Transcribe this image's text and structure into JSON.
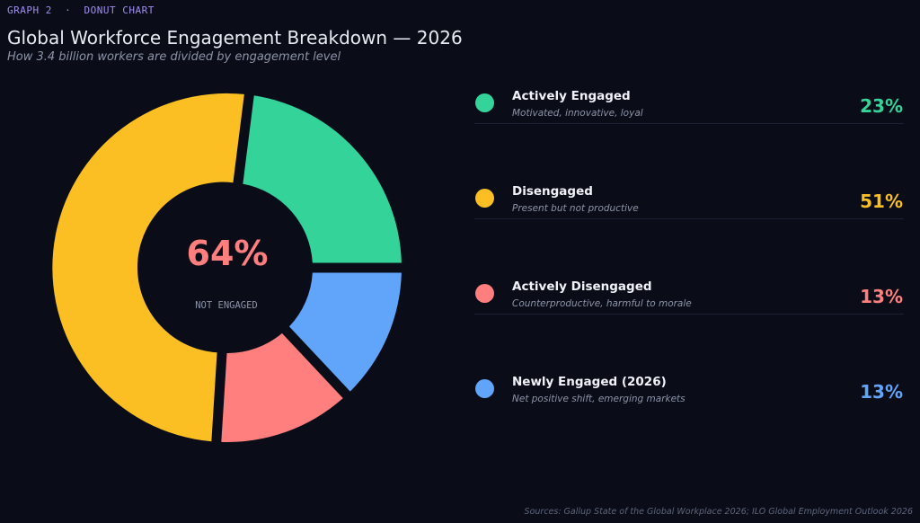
{
  "header": {
    "eyebrow": "GRAPH 2  ·  DONUT CHART",
    "title": "Global Workforce Engagement Breakdown — 2026",
    "subtitle": "How 3.4 billion workers are divided by engagement level"
  },
  "center": {
    "value": "64%",
    "label": "NOT ENGAGED",
    "color": "#ff7f7f"
  },
  "legend": [
    {
      "label": "Actively Engaged",
      "desc": "Motivated, innovative, loyal",
      "pct": "23%",
      "color": "#34d399"
    },
    {
      "label": "Disengaged",
      "desc": "Present but not productive",
      "pct": "51%",
      "color": "#fbbf24"
    },
    {
      "label": "Actively Disengaged",
      "desc": "Counterproductive, harmful to morale",
      "pct": "13%",
      "color": "#ff7f7f"
    },
    {
      "label": "Newly Engaged (2026)",
      "desc": "Net positive shift, emerging markets",
      "pct": "13%",
      "color": "#60a5fa"
    }
  ],
  "source": "Sources: Gallup State of the Global Workplace 2026; ILO Global Employment Outlook 2026",
  "chart_data": {
    "type": "pie",
    "donut": true,
    "categories": [
      "Actively Engaged",
      "Disengaged",
      "Actively Disengaged",
      "Newly Engaged (2026)"
    ],
    "values": [
      23,
      51,
      13,
      13
    ],
    "colors": [
      "#34d399",
      "#fbbf24",
      "#ff7f7f",
      "#60a5fa"
    ],
    "start_angle_deg": 0,
    "direction": "counterclockwise",
    "legend_position": "right"
  }
}
